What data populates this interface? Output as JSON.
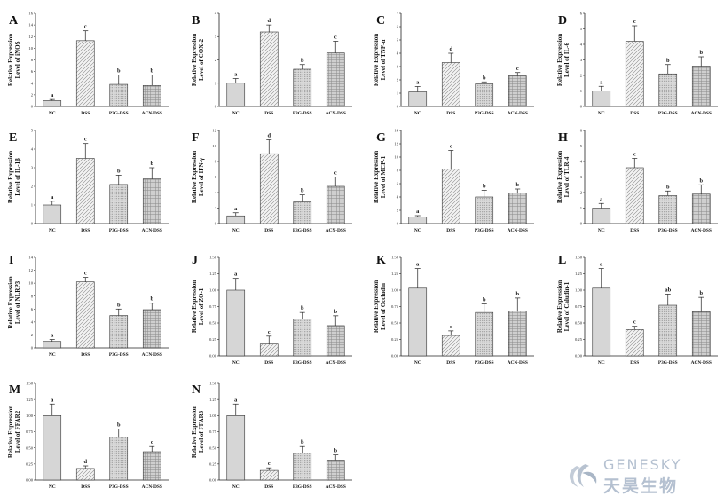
{
  "logo": {
    "text_en": "GENESKY",
    "text_cn": "天昊生物"
  },
  "fill_colors": {
    "NC": "#d6d6d6",
    "DSS": "#eeeeee",
    "P3G-DSS": "#c9c9c9",
    "ACN-DSS": "#c2c2c2"
  },
  "ylabel_line1": "Relative Expression",
  "chart_data": [
    {
      "panel": "A",
      "type": "bar",
      "ylabel": "Level of iNOS",
      "categories": [
        "NC",
        "DSS",
        "P3G-DSS",
        "ACN-DSS"
      ],
      "values": [
        1.0,
        11.3,
        3.8,
        3.6
      ],
      "errors": [
        0.2,
        1.7,
        1.6,
        1.8
      ],
      "sig": [
        "a",
        "c",
        "b",
        "b"
      ],
      "ylim": [
        0,
        16
      ],
      "yticks": [
        "0",
        "2",
        "4",
        "6",
        "8",
        "10",
        "12",
        "14",
        "16"
      ]
    },
    {
      "panel": "B",
      "type": "bar",
      "ylabel": "Level of COX-2",
      "categories": [
        "NC",
        "DSS",
        "P3G-DSS",
        "ACN-DSS"
      ],
      "values": [
        1.0,
        3.2,
        1.6,
        2.3
      ],
      "errors": [
        0.2,
        0.3,
        0.2,
        0.5
      ],
      "sig": [
        "a",
        "d",
        "b",
        "c"
      ],
      "ylim": [
        0,
        4
      ],
      "yticks": [
        "0",
        "1",
        "2",
        "3",
        "4"
      ]
    },
    {
      "panel": "C",
      "type": "bar",
      "ylabel": "Level of TNF-α",
      "categories": [
        "NC",
        "DSS",
        "P3G-DSS",
        "ACN-DSS"
      ],
      "values": [
        1.1,
        3.3,
        1.7,
        2.3
      ],
      "errors": [
        0.4,
        0.7,
        0.15,
        0.25
      ],
      "sig": [
        "a",
        "d",
        "b",
        "c"
      ],
      "ylim": [
        0,
        7
      ],
      "yticks": [
        "0",
        "1",
        "2",
        "3",
        "4",
        "5",
        "6",
        "7"
      ]
    },
    {
      "panel": "D",
      "type": "bar",
      "ylabel": "Level of IL-6",
      "categories": [
        "NC",
        "DSS",
        "P3G-DSS",
        "ACN-DSS"
      ],
      "values": [
        1.0,
        4.2,
        2.1,
        2.6
      ],
      "errors": [
        0.3,
        1.0,
        0.6,
        0.6
      ],
      "sig": [
        "a",
        "c",
        "b",
        "b"
      ],
      "ylim": [
        0,
        6
      ],
      "yticks": [
        "0",
        "1",
        "2",
        "3",
        "4",
        "5",
        "6"
      ]
    },
    {
      "panel": "E",
      "type": "bar",
      "ylabel": "Level of IL-1β",
      "categories": [
        "NC",
        "DSS",
        "P3G-DSS",
        "ACN-DSS"
      ],
      "values": [
        1.0,
        3.5,
        2.1,
        2.4
      ],
      "errors": [
        0.2,
        0.8,
        0.5,
        0.6
      ],
      "sig": [
        "a",
        "c",
        "b",
        "b"
      ],
      "ylim": [
        0,
        5
      ],
      "yticks": [
        "0",
        "1",
        "2",
        "3",
        "4",
        "5"
      ]
    },
    {
      "panel": "F",
      "type": "bar",
      "ylabel": "Level of IFN-γ",
      "categories": [
        "NC",
        "DSS",
        "P3G-DSS",
        "ACN-DSS"
      ],
      "values": [
        1.0,
        9.0,
        2.8,
        4.8
      ],
      "errors": [
        0.4,
        1.8,
        0.9,
        1.2
      ],
      "sig": [
        "a",
        "d",
        "b",
        "c"
      ],
      "ylim": [
        0,
        12
      ],
      "yticks": [
        "0",
        "2",
        "4",
        "6",
        "8",
        "10",
        "12"
      ]
    },
    {
      "panel": "G",
      "type": "bar",
      "ylabel": "Level of MCP-1",
      "categories": [
        "NC",
        "DSS",
        "P3G-DSS",
        "ACN-DSS"
      ],
      "values": [
        1.0,
        8.2,
        4.0,
        4.6
      ],
      "errors": [
        0.2,
        2.8,
        1.0,
        0.6
      ],
      "sig": [
        "a",
        "c",
        "b",
        "b"
      ],
      "ylim": [
        0,
        14
      ],
      "yticks": [
        "0",
        "2",
        "4",
        "6",
        "8",
        "10",
        "12",
        "14"
      ]
    },
    {
      "panel": "H",
      "type": "bar",
      "ylabel": "Level of TLR-4",
      "categories": [
        "NC",
        "DSS",
        "P3G-DSS",
        "ACN-DSS"
      ],
      "values": [
        1.0,
        3.6,
        1.8,
        1.9
      ],
      "errors": [
        0.3,
        0.6,
        0.3,
        0.6
      ],
      "sig": [
        "a",
        "c",
        "b",
        "b"
      ],
      "ylim": [
        0,
        6
      ],
      "yticks": [
        "0",
        "1",
        "2",
        "3",
        "4",
        "5",
        "6"
      ]
    },
    {
      "panel": "I",
      "type": "bar",
      "ylabel": "Level of NLRP3",
      "categories": [
        "NC",
        "DSS",
        "P3G-DSS",
        "ACN-DSS"
      ],
      "values": [
        1.0,
        10.2,
        5.0,
        5.9
      ],
      "errors": [
        0.3,
        0.7,
        1.0,
        1.0
      ],
      "sig": [
        "a",
        "c",
        "b",
        "b"
      ],
      "ylim": [
        0,
        14
      ],
      "yticks": [
        "0",
        "2",
        "4",
        "6",
        "8",
        "10",
        "12",
        "14"
      ]
    },
    {
      "panel": "J",
      "type": "bar",
      "ylabel": "Level of ZO-1",
      "categories": [
        "NC",
        "DSS",
        "P3G-DSS",
        "ACN-DSS"
      ],
      "values": [
        1.0,
        0.18,
        0.56,
        0.46
      ],
      "errors": [
        0.18,
        0.12,
        0.1,
        0.15
      ],
      "sig": [
        "a",
        "c",
        "b",
        "b"
      ],
      "ylim": [
        0,
        1.5
      ],
      "yticks": [
        "0.00",
        "0.25",
        "0.50",
        "0.75",
        "1.00",
        "1.25",
        "1.50"
      ]
    },
    {
      "panel": "K",
      "type": "bar",
      "ylabel": "Level of Occludin",
      "categories": [
        "NC",
        "DSS",
        "P3G-DSS",
        "ACN-DSS"
      ],
      "values": [
        1.03,
        0.31,
        0.66,
        0.68
      ],
      "errors": [
        0.3,
        0.07,
        0.13,
        0.2
      ],
      "sig": [
        "a",
        "c",
        "b",
        "b"
      ],
      "ylim": [
        0,
        1.5
      ],
      "yticks": [
        "0.00",
        "0.25",
        "0.50",
        "0.75",
        "1.00",
        "1.25",
        "1.50"
      ]
    },
    {
      "panel": "L",
      "type": "bar",
      "ylabel": "Level of Caludin-1",
      "categories": [
        "NC",
        "DSS",
        "P3G-DSS",
        "ACN-DSS"
      ],
      "values": [
        1.03,
        0.4,
        0.77,
        0.67
      ],
      "errors": [
        0.3,
        0.05,
        0.17,
        0.22
      ],
      "sig": [
        "a",
        "c",
        "ab",
        "b"
      ],
      "ylim": [
        0,
        1.5
      ],
      "yticks": [
        "0.00",
        "0.25",
        "0.50",
        "0.75",
        "1.00",
        "1.25",
        "1.50"
      ]
    },
    {
      "panel": "M",
      "type": "bar",
      "ylabel": "Level of FFAR2",
      "categories": [
        "NC",
        "DSS",
        "P3G-DSS",
        "ACN-DSS"
      ],
      "values": [
        1.0,
        0.18,
        0.67,
        0.44
      ],
      "errors": [
        0.18,
        0.04,
        0.12,
        0.08
      ],
      "sig": [
        "a",
        "d",
        "b",
        "c"
      ],
      "ylim": [
        0,
        1.5
      ],
      "yticks": [
        "0.00",
        "0.25",
        "0.50",
        "0.75",
        "1.00",
        "1.25",
        "1.50"
      ]
    },
    {
      "panel": "N",
      "type": "bar",
      "ylabel": "Level of FFAR3",
      "categories": [
        "NC",
        "DSS",
        "P3G-DSS",
        "ACN-DSS"
      ],
      "values": [
        1.0,
        0.15,
        0.42,
        0.31
      ],
      "errors": [
        0.18,
        0.04,
        0.1,
        0.08
      ],
      "sig": [
        "a",
        "c",
        "b",
        "b"
      ],
      "ylim": [
        0,
        1.5
      ],
      "yticks": [
        "0.00",
        "0.25",
        "0.50",
        "0.75",
        "1.00",
        "1.25",
        "1.50"
      ]
    }
  ]
}
